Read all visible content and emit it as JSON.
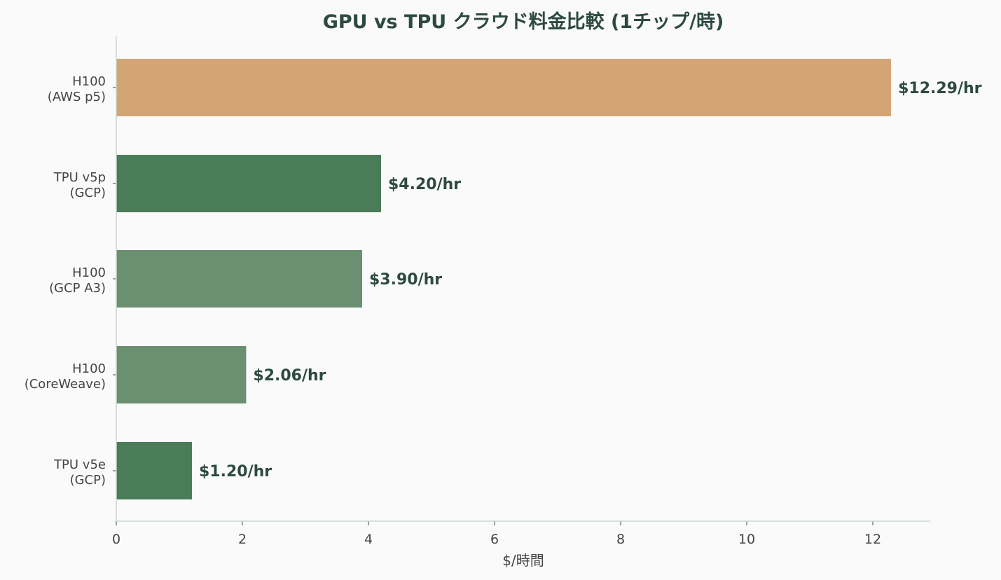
{
  "chart_data": {
    "type": "bar",
    "orientation": "horizontal",
    "title": "GPU vs TPU クラウド料金比較 (1チップ/時)",
    "xlabel": "$/時間",
    "ylabel": "",
    "xlim": [
      0,
      12.9
    ],
    "xticks": [
      0,
      2,
      4,
      6,
      8,
      10,
      12
    ],
    "grid": false,
    "categories": [
      [
        "H100",
        "(AWS p5)"
      ],
      [
        "TPU v5p",
        "(GCP)"
      ],
      [
        "H100",
        "(GCP A3)"
      ],
      [
        "H100",
        "(CoreWeave)"
      ],
      [
        "TPU v5e",
        "(GCP)"
      ]
    ],
    "values": [
      12.29,
      4.2,
      3.9,
      2.06,
      1.2
    ],
    "data_labels": [
      "$12.29/hr",
      "$4.20/hr",
      "$3.90/hr",
      "$2.06/hr",
      "$1.20/hr"
    ],
    "colors": [
      "#d4a574",
      "#4a7c59",
      "#6b8f71",
      "#6b8f71",
      "#4a7c59"
    ]
  }
}
